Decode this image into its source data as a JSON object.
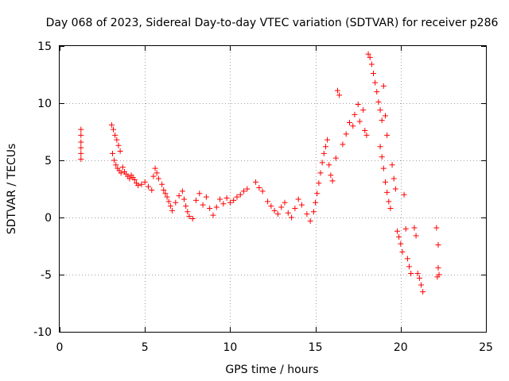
{
  "chart_data": {
    "type": "scatter",
    "title": "Day 068 of 2023, Sidereal Day-to-day VTEC variation (SDTVAR) for receiver p286",
    "xlabel": "GPS time / hours",
    "ylabel": "SDTVAR / TECUs",
    "xlim": [
      0,
      25
    ],
    "ylim": [
      -10,
      15
    ],
    "xticks": [
      0,
      5,
      10,
      15,
      20,
      25
    ],
    "yticks": [
      -10,
      -5,
      0,
      5,
      10,
      15
    ],
    "xtick_labels": [
      "0",
      "5",
      "10",
      "15",
      "20",
      "25"
    ],
    "ytick_labels": [
      "-10",
      "-5",
      "0",
      "5",
      "10",
      "15"
    ],
    "grid": true,
    "legend": "none",
    "marker": "plus",
    "color": "#ff0000",
    "series": [
      {
        "name": "SDTVAR",
        "points": [
          [
            1.25,
            7.7
          ],
          [
            1.25,
            7.2
          ],
          [
            1.25,
            6.6
          ],
          [
            1.25,
            6.1
          ],
          [
            1.25,
            5.6
          ],
          [
            1.25,
            5.1
          ],
          [
            3.05,
            8.1
          ],
          [
            3.15,
            7.7
          ],
          [
            3.25,
            7.2
          ],
          [
            3.35,
            6.8
          ],
          [
            3.45,
            6.3
          ],
          [
            3.55,
            5.8
          ],
          [
            3.1,
            5.6
          ],
          [
            3.2,
            5.0
          ],
          [
            3.3,
            4.6
          ],
          [
            3.4,
            4.3
          ],
          [
            3.5,
            4.1
          ],
          [
            3.6,
            3.9
          ],
          [
            3.7,
            4.4
          ],
          [
            3.8,
            4.0
          ],
          [
            3.9,
            3.8
          ],
          [
            4.0,
            3.6
          ],
          [
            4.1,
            3.4
          ],
          [
            4.2,
            3.7
          ],
          [
            4.3,
            3.5
          ],
          [
            4.4,
            3.3
          ],
          [
            4.5,
            3.0
          ],
          [
            4.6,
            2.8
          ],
          [
            4.8,
            2.9
          ],
          [
            5.0,
            3.1
          ],
          [
            5.2,
            2.7
          ],
          [
            5.4,
            2.4
          ],
          [
            5.5,
            3.6
          ],
          [
            5.6,
            4.3
          ],
          [
            5.7,
            3.9
          ],
          [
            5.8,
            3.4
          ],
          [
            6.0,
            2.9
          ],
          [
            6.1,
            2.4
          ],
          [
            6.2,
            2.1
          ],
          [
            6.3,
            1.8
          ],
          [
            6.4,
            1.4
          ],
          [
            6.5,
            1.0
          ],
          [
            6.6,
            0.6
          ],
          [
            6.8,
            1.3
          ],
          [
            7.0,
            1.9
          ],
          [
            7.2,
            2.3
          ],
          [
            7.3,
            1.6
          ],
          [
            7.4,
            1.0
          ],
          [
            7.5,
            0.5
          ],
          [
            7.6,
            0.1
          ],
          [
            7.8,
            -0.1
          ],
          [
            8.0,
            1.5
          ],
          [
            8.2,
            2.1
          ],
          [
            8.4,
            1.1
          ],
          [
            8.6,
            1.8
          ],
          [
            8.8,
            0.8
          ],
          [
            9.0,
            0.2
          ],
          [
            9.2,
            0.9
          ],
          [
            9.4,
            1.6
          ],
          [
            9.6,
            1.2
          ],
          [
            9.8,
            1.7
          ],
          [
            10.0,
            1.3
          ],
          [
            10.2,
            1.5
          ],
          [
            10.4,
            1.8
          ],
          [
            10.6,
            2.0
          ],
          [
            10.8,
            2.3
          ],
          [
            11.0,
            2.5
          ],
          [
            11.5,
            3.1
          ],
          [
            11.7,
            2.6
          ],
          [
            11.9,
            2.3
          ],
          [
            12.2,
            1.4
          ],
          [
            12.4,
            1.0
          ],
          [
            12.6,
            0.6
          ],
          [
            12.8,
            0.3
          ],
          [
            13.0,
            0.9
          ],
          [
            13.2,
            1.3
          ],
          [
            13.4,
            0.4
          ],
          [
            13.6,
            0.0
          ],
          [
            13.8,
            0.8
          ],
          [
            14.0,
            1.6
          ],
          [
            14.2,
            1.1
          ],
          [
            14.5,
            0.3
          ],
          [
            14.7,
            -0.3
          ],
          [
            14.9,
            0.5
          ],
          [
            15.0,
            1.3
          ],
          [
            15.1,
            2.1
          ],
          [
            15.2,
            3.0
          ],
          [
            15.3,
            3.9
          ],
          [
            15.4,
            4.8
          ],
          [
            15.5,
            5.6
          ],
          [
            15.6,
            6.2
          ],
          [
            15.7,
            6.8
          ],
          [
            15.8,
            4.6
          ],
          [
            15.9,
            3.7
          ],
          [
            16.0,
            3.2
          ],
          [
            16.2,
            5.2
          ],
          [
            16.3,
            11.1
          ],
          [
            16.4,
            10.7
          ],
          [
            16.6,
            6.4
          ],
          [
            16.8,
            7.3
          ],
          [
            17.0,
            8.3
          ],
          [
            17.2,
            8.0
          ],
          [
            17.3,
            9.0
          ],
          [
            17.5,
            9.9
          ],
          [
            17.6,
            8.4
          ],
          [
            17.8,
            9.4
          ],
          [
            17.9,
            7.6
          ],
          [
            18.0,
            7.2
          ],
          [
            18.1,
            14.3
          ],
          [
            18.2,
            14.0
          ],
          [
            18.3,
            13.4
          ],
          [
            18.4,
            12.6
          ],
          [
            18.5,
            11.8
          ],
          [
            18.6,
            11.0
          ],
          [
            18.7,
            10.1
          ],
          [
            18.8,
            9.4
          ],
          [
            18.9,
            8.5
          ],
          [
            19.0,
            11.5
          ],
          [
            19.1,
            8.9
          ],
          [
            19.2,
            7.2
          ],
          [
            18.8,
            6.2
          ],
          [
            18.9,
            5.3
          ],
          [
            19.0,
            4.3
          ],
          [
            19.1,
            3.1
          ],
          [
            19.2,
            2.2
          ],
          [
            19.3,
            1.4
          ],
          [
            19.4,
            0.8
          ],
          [
            19.5,
            4.6
          ],
          [
            19.6,
            3.4
          ],
          [
            19.7,
            2.5
          ],
          [
            19.8,
            -1.2
          ],
          [
            19.9,
            -1.7
          ],
          [
            20.0,
            -2.3
          ],
          [
            20.1,
            -3.0
          ],
          [
            20.2,
            2.0
          ],
          [
            20.3,
            -1.0
          ],
          [
            20.4,
            -3.6
          ],
          [
            20.5,
            -4.3
          ],
          [
            20.6,
            -4.9
          ],
          [
            20.8,
            -0.9
          ],
          [
            20.9,
            -1.6
          ],
          [
            21.0,
            -4.9
          ],
          [
            21.1,
            -5.3
          ],
          [
            21.2,
            -5.9
          ],
          [
            21.3,
            -6.5
          ],
          [
            22.1,
            -0.9
          ],
          [
            22.2,
            -2.4
          ],
          [
            22.2,
            -4.4
          ],
          [
            22.15,
            -5.2
          ],
          [
            22.25,
            -5.0
          ]
        ]
      }
    ]
  }
}
